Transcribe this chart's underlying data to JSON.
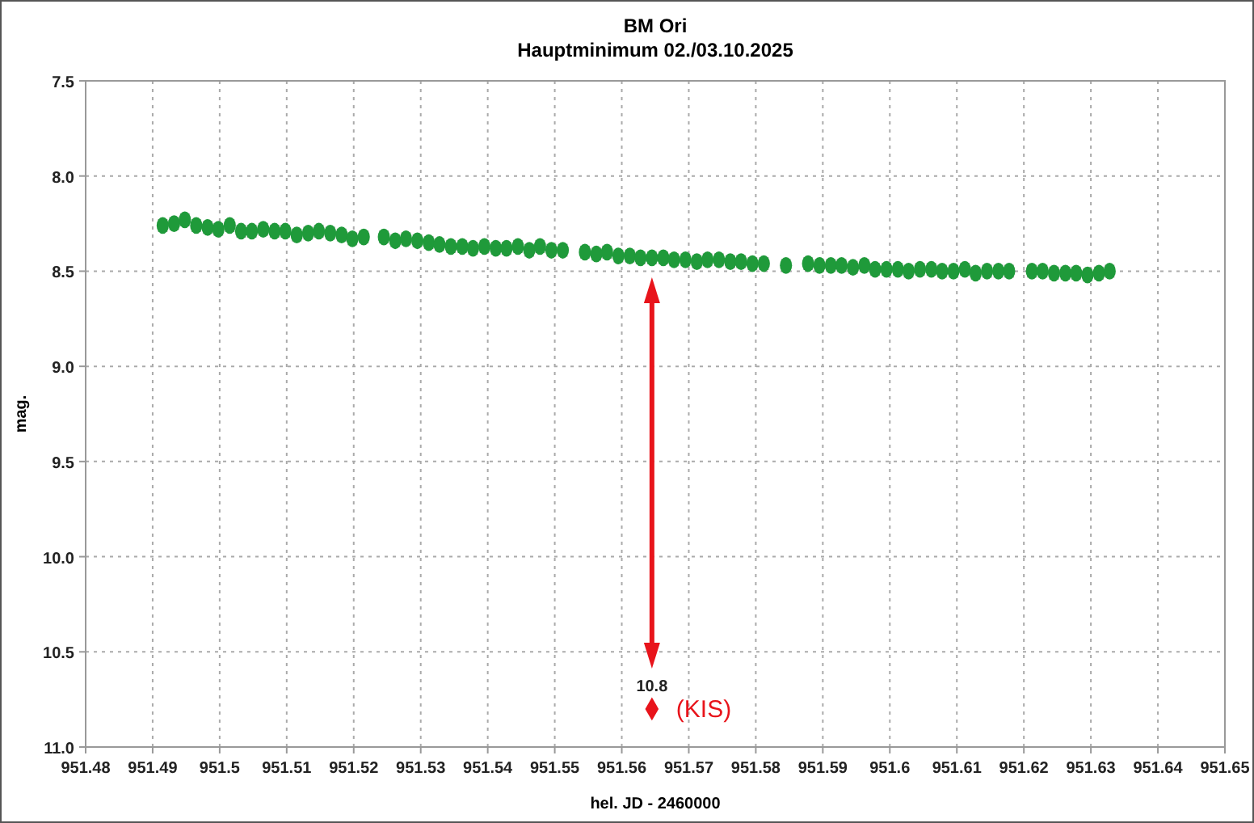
{
  "chart_data": {
    "type": "scatter",
    "title": "BM Ori",
    "subtitle": "Hauptminimum 02./03.10.2025",
    "xlabel": "hel. JD - 2460000",
    "ylabel": "mag.",
    "xlim": [
      951.48,
      951.65
    ],
    "xticks": [
      951.48,
      951.49,
      951.5,
      951.51,
      951.52,
      951.53,
      951.54,
      951.55,
      951.56,
      951.57,
      951.58,
      951.59,
      951.6,
      951.61,
      951.62,
      951.63,
      951.64,
      951.65
    ],
    "ylim": [
      11.0,
      7.5
    ],
    "yticks": [
      {
        "value": 7.5,
        "label": "7.5"
      },
      {
        "value": 8,
        "label": "8.0"
      },
      {
        "value": 8.5,
        "label": "8.5"
      },
      {
        "value": 9,
        "label": "9.0"
      },
      {
        "value": 9.5,
        "label": "9.5"
      },
      {
        "value": 10,
        "label": "10.0"
      },
      {
        "value": 10.5,
        "label": "10.5"
      },
      {
        "value": 11,
        "label": "11.0"
      }
    ],
    "grid": true,
    "series": [
      {
        "marker": "circle",
        "color": "#1f9a3a",
        "x": [
          951.4915,
          951.4932,
          951.4948,
          951.4965,
          951.4982,
          951.4998,
          951.5015,
          951.5032,
          951.5048,
          951.5065,
          951.5082,
          951.5098,
          951.5115,
          951.5132,
          951.5148,
          951.5165,
          951.5182,
          951.5198,
          951.5215,
          951.5245,
          951.5262,
          951.5278,
          951.5295,
          951.5312,
          951.5328,
          951.5345,
          951.5362,
          951.5378,
          951.5395,
          951.5412,
          951.5428,
          951.5445,
          951.5462,
          951.5478,
          951.5495,
          951.5512,
          951.5545,
          951.5562,
          951.5578,
          951.5595,
          951.5612,
          951.5628,
          951.5645,
          951.5662,
          951.5678,
          951.5695,
          951.5712,
          951.5728,
          951.5745,
          951.5762,
          951.5778,
          951.5795,
          951.5812,
          951.5845,
          951.5878,
          951.5895,
          951.5912,
          951.5928,
          951.5945,
          951.5962,
          951.5978,
          951.5995,
          951.6012,
          951.6028,
          951.6045,
          951.6062,
          951.6078,
          951.6095,
          951.6112,
          951.6128,
          951.6145,
          951.6162,
          951.6178,
          951.6212,
          951.6228,
          951.6245,
          951.6262,
          951.6278,
          951.6295,
          951.6312,
          951.6328
        ],
        "values": [
          8.26,
          8.25,
          8.23,
          8.26,
          8.27,
          8.28,
          8.26,
          8.29,
          8.29,
          8.28,
          8.29,
          8.29,
          8.31,
          8.3,
          8.29,
          8.3,
          8.31,
          8.33,
          8.32,
          8.32,
          8.34,
          8.33,
          8.34,
          8.35,
          8.36,
          8.37,
          8.37,
          8.38,
          8.37,
          8.38,
          8.38,
          8.37,
          8.39,
          8.37,
          8.39,
          8.39,
          8.4,
          8.41,
          8.4,
          8.42,
          8.42,
          8.43,
          8.43,
          8.43,
          8.44,
          8.44,
          8.45,
          8.44,
          8.44,
          8.45,
          8.45,
          8.46,
          8.46,
          8.47,
          8.46,
          8.47,
          8.47,
          8.47,
          8.48,
          8.47,
          8.49,
          8.49,
          8.49,
          8.5,
          8.49,
          8.49,
          8.5,
          8.5,
          8.49,
          8.51,
          8.5,
          8.5,
          8.5,
          8.5,
          8.5,
          8.51,
          8.51,
          8.51,
          8.52,
          8.51,
          8.5
        ],
        "errors": [
          0.03,
          0.03,
          0.03,
          0.03,
          0.03,
          0.03,
          0.03,
          0.03,
          0.03,
          0.03,
          0.03,
          0.03,
          0.03,
          0.03,
          0.03,
          0.03,
          0.03,
          0.03,
          0.03,
          0.03,
          0.03,
          0.03,
          0.03,
          0.03,
          0.03,
          0.03,
          0.03,
          0.03,
          0.03,
          0.03,
          0.03,
          0.03,
          0.03,
          0.03,
          0.03,
          0.03,
          0.03,
          0.03,
          0.03,
          0.03,
          0.03,
          0.03,
          0.03,
          0.03,
          0.03,
          0.03,
          0.03,
          0.03,
          0.03,
          0.03,
          0.03,
          0.03,
          0.03,
          0.03,
          0.03,
          0.03,
          0.03,
          0.03,
          0.03,
          0.03,
          0.03,
          0.03,
          0.03,
          0.03,
          0.03,
          0.03,
          0.03,
          0.03,
          0.03,
          0.03,
          0.03,
          0.03,
          0.03,
          0.03,
          0.03,
          0.03,
          0.03,
          0.03,
          0.03,
          0.03,
          0.03
        ]
      },
      {
        "marker": "diamond",
        "name": "(KIS)",
        "color": "#e8141b",
        "x": [
          951.5645
        ],
        "values": [
          10.8
        ],
        "value_labels": [
          "10.8"
        ]
      }
    ]
  }
}
